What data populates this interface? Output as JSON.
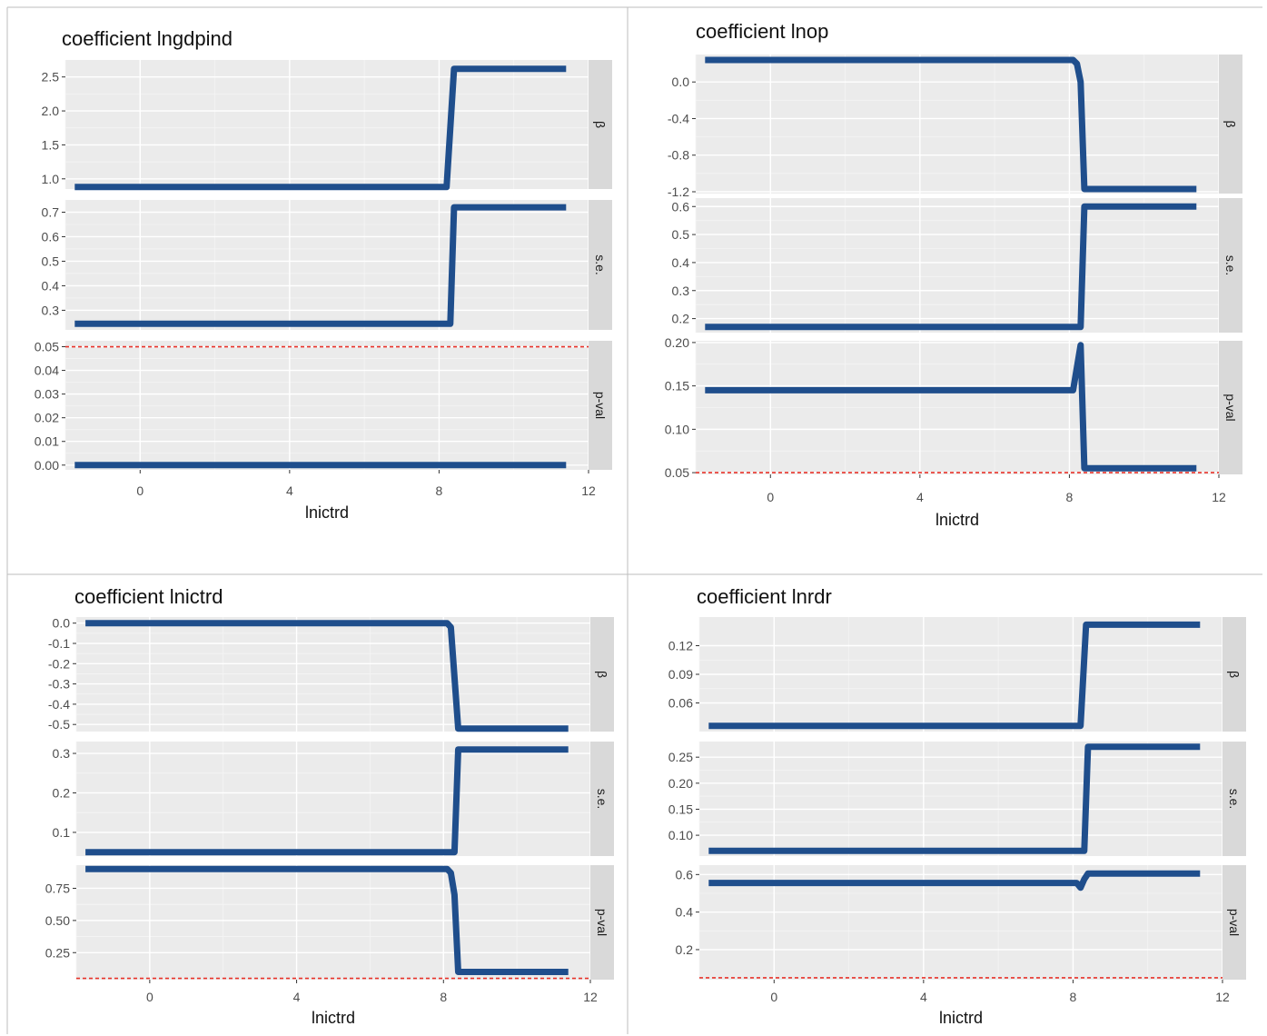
{
  "chart_data": [
    {
      "type": "line",
      "title": "coefficient lngdpind",
      "xlabel": "lnictrd",
      "xlim": [
        -2,
        12
      ],
      "x_ticks": [
        0,
        4,
        8,
        12
      ],
      "series_color": "#1F4E8C",
      "reference_color": "#E8332A",
      "threshold": 8.3,
      "panels": [
        {
          "strip": "β",
          "ylim": [
            0.85,
            2.75
          ],
          "ticks": [
            1.0,
            1.5,
            2.0,
            2.5
          ],
          "tick_labels": [
            "1.0",
            "1.5",
            "2.0",
            "2.5"
          ],
          "points": [
            [
              -1.75,
              0.88
            ],
            [
              8.2,
              0.88
            ],
            [
              8.4,
              2.62
            ],
            [
              11.4,
              2.62
            ]
          ]
        },
        {
          "strip": "s.e.",
          "ylim": [
            0.22,
            0.75
          ],
          "ticks": [
            0.3,
            0.4,
            0.5,
            0.6,
            0.7
          ],
          "tick_labels": [
            "0.3",
            "0.4",
            "0.5",
            "0.6",
            "0.7"
          ],
          "points": [
            [
              -1.75,
              0.245
            ],
            [
              8.3,
              0.245
            ],
            [
              8.4,
              0.72
            ],
            [
              11.4,
              0.72
            ]
          ]
        },
        {
          "strip": "p-val",
          "ylim": [
            -0.002,
            0.0525
          ],
          "ticks": [
            0.0,
            0.01,
            0.02,
            0.03,
            0.04,
            0.05
          ],
          "tick_labels": [
            "0.00",
            "0.01",
            "0.02",
            "0.03",
            "0.04",
            "0.05"
          ],
          "ref_line": 0.05,
          "points": [
            [
              -1.75,
              0.0
            ],
            [
              11.4,
              0.0
            ]
          ]
        }
      ]
    },
    {
      "type": "line",
      "title": "coefficient lnop",
      "xlabel": "lnictrd",
      "xlim": [
        -2,
        12
      ],
      "x_ticks": [
        0,
        4,
        8,
        12
      ],
      "series_color": "#1F4E8C",
      "reference_color": "#E8332A",
      "threshold": 8.3,
      "panels": [
        {
          "strip": "β",
          "ylim": [
            -1.22,
            0.3
          ],
          "ticks": [
            -1.2,
            -0.8,
            -0.4,
            0.0
          ],
          "tick_labels": [
            "-1.2",
            "-0.8",
            "-0.4",
            "0.0"
          ],
          "points": [
            [
              -1.75,
              0.24
            ],
            [
              8.1,
              0.24
            ],
            [
              8.2,
              0.2
            ],
            [
              8.3,
              0.0
            ],
            [
              8.4,
              -1.17
            ],
            [
              11.4,
              -1.17
            ]
          ]
        },
        {
          "strip": "s.e.",
          "ylim": [
            0.15,
            0.63
          ],
          "ticks": [
            0.2,
            0.3,
            0.4,
            0.5,
            0.6
          ],
          "tick_labels": [
            "0.2",
            "0.3",
            "0.4",
            "0.5",
            "0.6"
          ],
          "points": [
            [
              -1.75,
              0.17
            ],
            [
              8.3,
              0.17
            ],
            [
              8.4,
              0.6
            ],
            [
              11.4,
              0.6
            ]
          ]
        },
        {
          "strip": "p-val",
          "ylim": [
            0.048,
            0.202
          ],
          "ticks": [
            0.05,
            0.1,
            0.15,
            0.2
          ],
          "tick_labels": [
            "0.05",
            "0.10",
            "0.15",
            "0.20"
          ],
          "ref_line": 0.05,
          "points": [
            [
              -1.75,
              0.145
            ],
            [
              8.1,
              0.145
            ],
            [
              8.3,
              0.197
            ],
            [
              8.4,
              0.055
            ],
            [
              11.4,
              0.055
            ]
          ]
        }
      ]
    },
    {
      "type": "line",
      "title": "coefficient lnictrd",
      "xlabel": "lnictrd",
      "xlim": [
        -2,
        12
      ],
      "x_ticks": [
        0,
        4,
        8,
        12
      ],
      "series_color": "#1F4E8C",
      "reference_color": "#E8332A",
      "threshold": 8.3,
      "panels": [
        {
          "strip": "β",
          "ylim": [
            -0.535,
            0.03
          ],
          "ticks": [
            -0.5,
            -0.4,
            -0.3,
            -0.2,
            -0.1,
            0.0
          ],
          "tick_labels": [
            "-0.5",
            "-0.4",
            "-0.3",
            "-0.2",
            "-0.1",
            "0.0"
          ],
          "points": [
            [
              -1.75,
              0.0
            ],
            [
              8.1,
              0.0
            ],
            [
              8.2,
              -0.02
            ],
            [
              8.4,
              -0.52
            ],
            [
              11.4,
              -0.52
            ]
          ]
        },
        {
          "strip": "s.e.",
          "ylim": [
            0.04,
            0.33
          ],
          "ticks": [
            0.1,
            0.2,
            0.3
          ],
          "tick_labels": [
            "0.1",
            "0.2",
            "0.3"
          ],
          "points": [
            [
              -1.75,
              0.05
            ],
            [
              8.3,
              0.05
            ],
            [
              8.4,
              0.31
            ],
            [
              11.4,
              0.31
            ]
          ]
        },
        {
          "strip": "p-val",
          "ylim": [
            0.04,
            0.93
          ],
          "ticks": [
            0.25,
            0.5,
            0.75
          ],
          "tick_labels": [
            "0.25",
            "0.50",
            "0.75"
          ],
          "ref_line": 0.05,
          "points": [
            [
              -1.75,
              0.9
            ],
            [
              8.1,
              0.9
            ],
            [
              8.2,
              0.87
            ],
            [
              8.3,
              0.7
            ],
            [
              8.4,
              0.1
            ],
            [
              11.4,
              0.1
            ]
          ]
        }
      ]
    },
    {
      "type": "line",
      "title": "coefficient lnrdr",
      "xlabel": "lnictrd",
      "xlim": [
        -2,
        12
      ],
      "x_ticks": [
        0,
        4,
        8,
        12
      ],
      "series_color": "#1F4E8C",
      "reference_color": "#E8332A",
      "threshold": 8.3,
      "panels": [
        {
          "strip": "β",
          "ylim": [
            0.03,
            0.15
          ],
          "ticks": [
            0.06,
            0.09,
            0.12
          ],
          "tick_labels": [
            "0.06",
            "0.09",
            "0.12"
          ],
          "points": [
            [
              -1.75,
              0.036
            ],
            [
              8.2,
              0.036
            ],
            [
              8.35,
              0.142
            ],
            [
              11.4,
              0.142
            ]
          ]
        },
        {
          "strip": "s.e.",
          "ylim": [
            0.06,
            0.28
          ],
          "ticks": [
            0.1,
            0.15,
            0.2,
            0.25
          ],
          "tick_labels": [
            "0.10",
            "0.15",
            "0.20",
            "0.25"
          ],
          "points": [
            [
              -1.75,
              0.07
            ],
            [
              8.3,
              0.07
            ],
            [
              8.4,
              0.27
            ],
            [
              11.4,
              0.27
            ]
          ]
        },
        {
          "strip": "p-val",
          "ylim": [
            0.04,
            0.65
          ],
          "ticks": [
            0.2,
            0.4,
            0.6
          ],
          "tick_labels": [
            "0.2",
            "0.4",
            "0.6"
          ],
          "ref_line": 0.05,
          "points": [
            [
              -1.75,
              0.555
            ],
            [
              8.1,
              0.555
            ],
            [
              8.2,
              0.53
            ],
            [
              8.3,
              0.575
            ],
            [
              8.4,
              0.605
            ],
            [
              11.4,
              0.605
            ]
          ]
        }
      ]
    }
  ]
}
